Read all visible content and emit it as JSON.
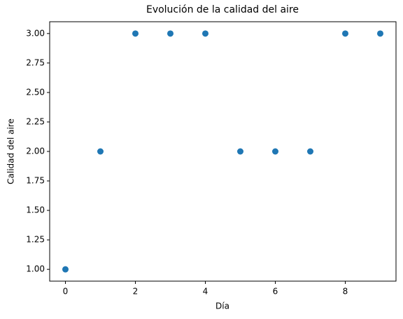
{
  "chart_data": {
    "type": "scatter",
    "title": "Evolución de la calidad del aire",
    "x_label": "Día",
    "y_label": "Calidad del aire",
    "x": [
      0,
      1,
      2,
      3,
      4,
      5,
      6,
      7,
      8,
      9
    ],
    "values": [
      1,
      2,
      3,
      3,
      3,
      2,
      2,
      2,
      3,
      3
    ],
    "color": "#1f77b4",
    "xlim": [
      -0.45,
      9.45
    ],
    "xticks": [
      0,
      2,
      4,
      6,
      8
    ],
    "ylim": [
      0.9,
      3.1
    ],
    "yticks": [
      {
        "value": 1,
        "label": "1.00"
      },
      {
        "value": 1.25,
        "label": "1.25"
      },
      {
        "value": 1.5,
        "label": "1.50"
      },
      {
        "value": 1.75,
        "label": "1.75"
      },
      {
        "value": 2,
        "label": "2.00"
      },
      {
        "value": 2.25,
        "label": "2.25"
      },
      {
        "value": 2.5,
        "label": "2.50"
      },
      {
        "value": 2.75,
        "label": "2.75"
      },
      {
        "value": 3,
        "label": "3.00"
      }
    ],
    "grid": false
  }
}
